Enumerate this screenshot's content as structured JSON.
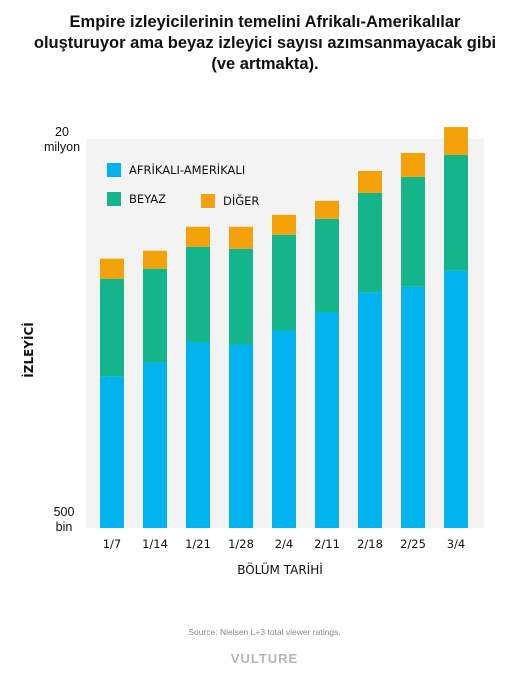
{
  "chart_data": {
    "type": "bar",
    "stacked": true,
    "title": "Empire izleyicilerinin temelini Afrikalı-Amerikalılar oluşturuyor ama beyaz izleyici sayısı azımsanmayacak gibi (ve artmakta).",
    "xlabel": "BÖLÜM TARİHİ",
    "ylabel": "İZLEYİCİ",
    "ytick_top": [
      "20",
      "milyon"
    ],
    "ytick_bottom": [
      "500",
      "bin"
    ],
    "ylim": [
      0.5,
      20
    ],
    "categories": [
      "1/7",
      "1/14",
      "1/21",
      "1/28",
      "2/4",
      "2/11",
      "2/18",
      "2/25",
      "3/4"
    ],
    "series": [
      {
        "name": "AFRİKALI-AMERİKALI",
        "color": "#00b3ef",
        "values": [
          7.6,
          8.3,
          9.3,
          9.2,
          9.9,
          10.8,
          11.8,
          12.1,
          12.9
        ]
      },
      {
        "name": "BEYAZ",
        "color": "#14b58b",
        "values": [
          4.9,
          4.7,
          4.8,
          4.8,
          4.8,
          4.7,
          5.0,
          5.5,
          5.8
        ]
      },
      {
        "name": "DİĞER",
        "color": "#f4a20a",
        "values": [
          1.0,
          0.9,
          1.0,
          1.1,
          1.0,
          0.9,
          1.1,
          1.2,
          1.4
        ]
      }
    ],
    "legend_position": "top-left",
    "grid": false
  },
  "source": "Source: Nielsen L+3 total viewer ratings.",
  "brand": "VULTURE"
}
